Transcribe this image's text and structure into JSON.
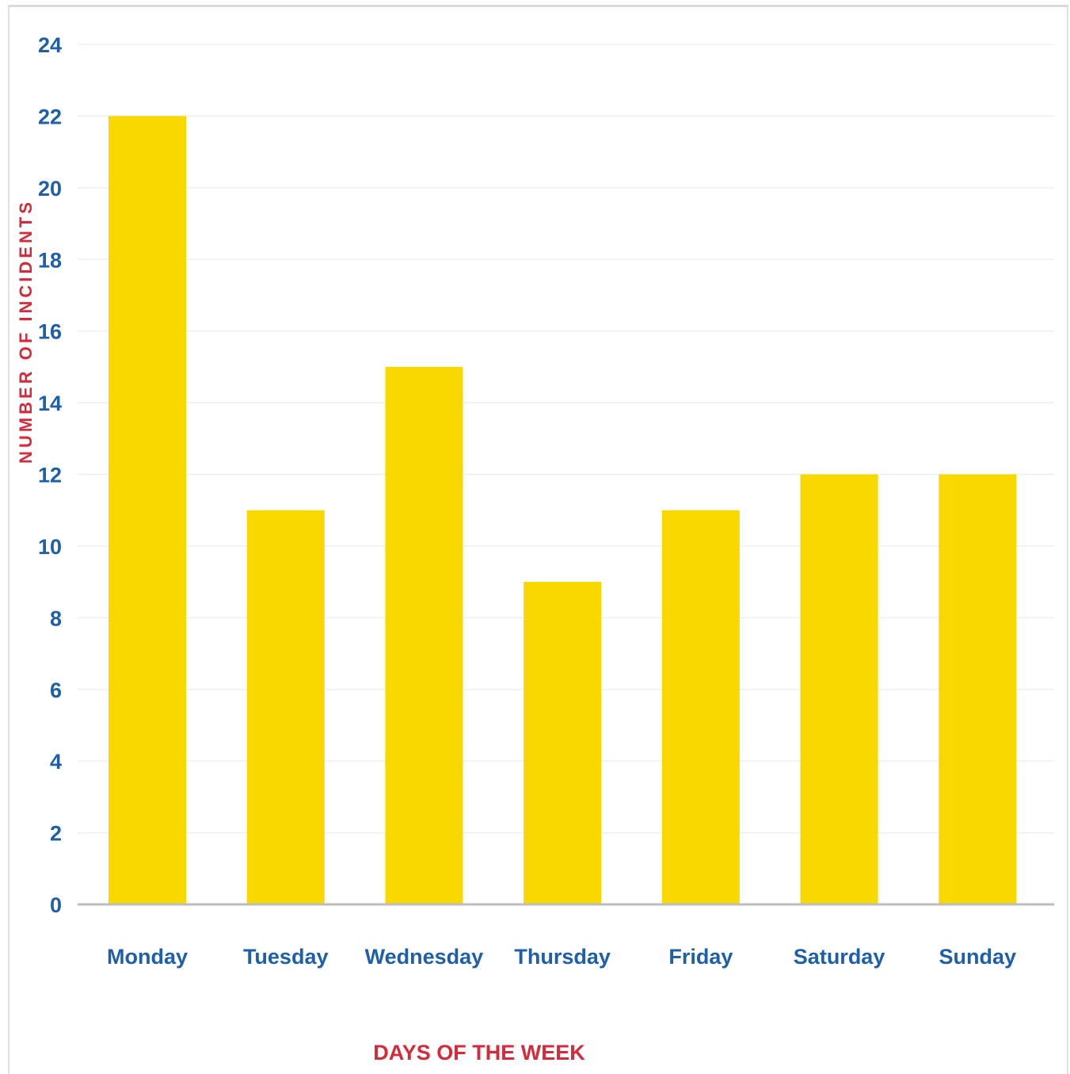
{
  "chart_data": {
    "type": "bar",
    "categories": [
      "Monday",
      "Tuesday",
      "Wednesday",
      "Thursday",
      "Friday",
      "Saturday",
      "Sunday"
    ],
    "values": [
      22,
      11,
      15,
      9,
      11,
      12,
      12
    ],
    "xlabel": "DAYS OF THE WEEK",
    "ylabel": "NUMBER OF INCIDENTS",
    "ylim": [
      0,
      24
    ],
    "yticks": [
      "0",
      "2",
      "4",
      "6",
      "8",
      "10",
      "12",
      "14",
      "16",
      "18",
      "20",
      "22",
      "24"
    ],
    "grid": true,
    "legend": "none"
  },
  "colors": {
    "bar": "#f9d800",
    "tick_label": "#1f5fa8",
    "axis_title": "#d42a3a",
    "gridline": "#efefef",
    "baseline": "#bdbdbd"
  }
}
